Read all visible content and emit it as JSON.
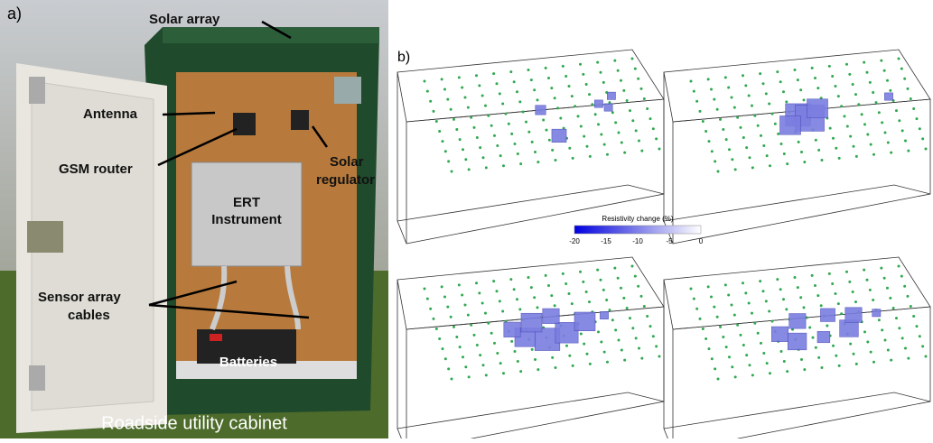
{
  "panel_a": {
    "label": "a)",
    "annotations": {
      "solar_array": "Solar array",
      "antenna": "Antenna",
      "gsm_router": "GSM router",
      "solar_regulator": [
        "Solar",
        "regulator"
      ],
      "ert_instrument": [
        "ERT",
        "Instrument"
      ],
      "sensor_array_cables": [
        "Sensor array",
        "cables"
      ],
      "batteries": "Batteries"
    },
    "caption": "Roadside utility cabinet"
  },
  "panel_b": {
    "label": "b)",
    "colorbar": {
      "title": "Resistivity change (%)",
      "ticks": [
        -20,
        -15,
        -10,
        -5,
        0
      ]
    }
  }
}
